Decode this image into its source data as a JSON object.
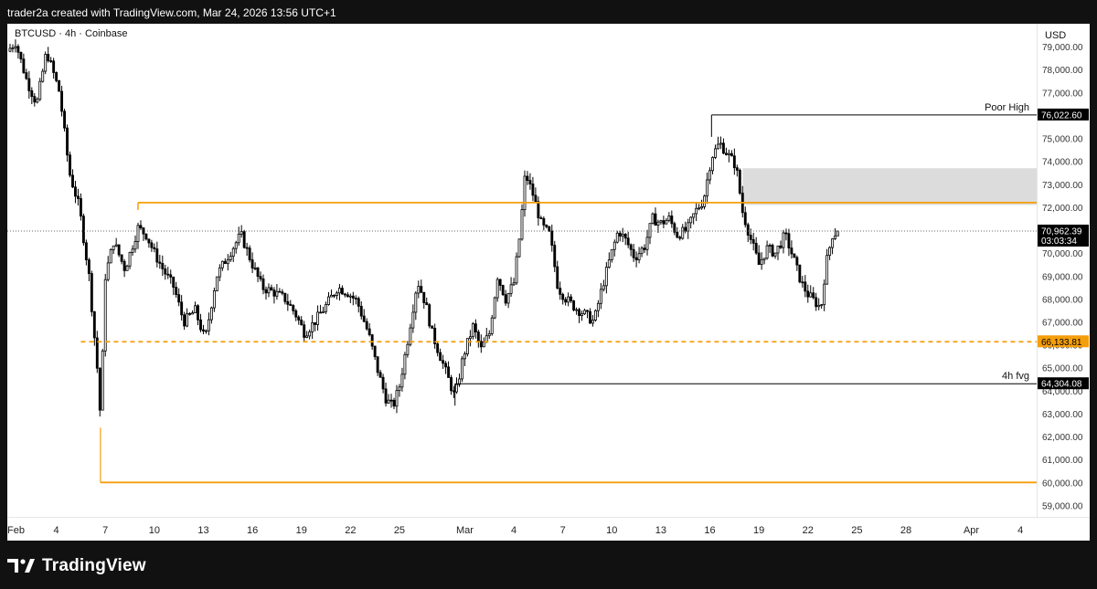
{
  "header": {
    "caption": "trader2a created with TradingView.com, Mar 24, 2026 13:56 UTC+1"
  },
  "footer": {
    "brand": "TradingView",
    "logo_icon": "tradingview-logo-icon"
  },
  "chart_data": {
    "type": "candlestick",
    "title": "BTCUSD · 4h · Coinbase",
    "currency_label": "USD",
    "symbol": "BTCUSD",
    "interval": "4h",
    "exchange": "Coinbase",
    "y_axis": {
      "position": "right",
      "ylim": [
        58500,
        80000
      ],
      "ticks": [
        59000,
        60000,
        61000,
        62000,
        63000,
        64000,
        65000,
        66000,
        67000,
        68000,
        69000,
        70000,
        71000,
        72000,
        73000,
        74000,
        75000,
        76000,
        77000,
        78000,
        79000
      ],
      "tick_labels": [
        "59,000.00",
        "60,000.00",
        "61,000.00",
        "62,000.00",
        "63,000.00",
        "64,000.00",
        "65,000.00",
        "66,000.00",
        "67,000.00",
        "68,000.00",
        "69,000.00",
        "70,000.00",
        "71,000.00",
        "72,000.00",
        "73,000.00",
        "74,000.00",
        "75,000.00",
        "76,000.00",
        "77,000.00",
        "78,000.00",
        "79,000.00"
      ]
    },
    "x_axis": {
      "unit": "day index (0 = Feb 1)",
      "xlim": [
        0,
        63
      ],
      "ticks": [
        {
          "day": 0,
          "label": "Feb"
        },
        {
          "day": 3,
          "label": "4"
        },
        {
          "day": 6,
          "label": "7"
        },
        {
          "day": 9,
          "label": "10"
        },
        {
          "day": 12,
          "label": "13"
        },
        {
          "day": 15,
          "label": "16"
        },
        {
          "day": 18,
          "label": "19"
        },
        {
          "day": 21,
          "label": "22"
        },
        {
          "day": 24,
          "label": "25"
        },
        {
          "day": 28,
          "label": "Mar"
        },
        {
          "day": 31,
          "label": "4"
        },
        {
          "day": 34,
          "label": "7"
        },
        {
          "day": 37,
          "label": "10"
        },
        {
          "day": 40,
          "label": "13"
        },
        {
          "day": 43,
          "label": "16"
        },
        {
          "day": 46,
          "label": "19"
        },
        {
          "day": 49,
          "label": "22"
        },
        {
          "day": 52,
          "label": "25"
        },
        {
          "day": 55,
          "label": "28"
        },
        {
          "day": 59,
          "label": "Apr"
        },
        {
          "day": 62,
          "label": "4"
        }
      ]
    },
    "price_path": [
      [
        0.0,
        78800
      ],
      [
        0.5,
        79200
      ],
      [
        1.2,
        77500
      ],
      [
        1.8,
        76500
      ],
      [
        2.4,
        78800
      ],
      [
        3.2,
        77000
      ],
      [
        3.8,
        73500
      ],
      [
        4.4,
        72000
      ],
      [
        5.0,
        69000
      ],
      [
        5.5,
        65000
      ],
      [
        5.7,
        62800
      ],
      [
        6.0,
        69000
      ],
      [
        6.5,
        70500
      ],
      [
        7.2,
        69300
      ],
      [
        8.0,
        71100
      ],
      [
        8.5,
        70800
      ],
      [
        9.0,
        70000
      ],
      [
        9.6,
        69200
      ],
      [
        10.2,
        68500
      ],
      [
        10.8,
        67000
      ],
      [
        11.5,
        67500
      ],
      [
        12.1,
        66200
      ],
      [
        12.8,
        69000
      ],
      [
        13.6,
        70000
      ],
      [
        14.3,
        70800
      ],
      [
        15.0,
        69500
      ],
      [
        15.6,
        68500
      ],
      [
        16.3,
        68300
      ],
      [
        17.0,
        68000
      ],
      [
        17.6,
        67400
      ],
      [
        18.2,
        66500
      ],
      [
        18.8,
        67000
      ],
      [
        19.5,
        67700
      ],
      [
        20.2,
        68500
      ],
      [
        20.8,
        68300
      ],
      [
        21.4,
        67900
      ],
      [
        22.1,
        66500
      ],
      [
        22.7,
        64800
      ],
      [
        23.2,
        63600
      ],
      [
        23.6,
        63300
      ],
      [
        24.0,
        64200
      ],
      [
        24.5,
        66200
      ],
      [
        25.1,
        68800
      ],
      [
        25.6,
        67800
      ],
      [
        26.0,
        66500
      ],
      [
        26.5,
        65500
      ],
      [
        27.0,
        64500
      ],
      [
        27.4,
        63700
      ],
      [
        27.9,
        65500
      ],
      [
        28.5,
        66800
      ],
      [
        29.0,
        65800
      ],
      [
        29.5,
        66500
      ],
      [
        30.0,
        69000
      ],
      [
        30.5,
        68000
      ],
      [
        31.0,
        68700
      ],
      [
        31.4,
        71000
      ],
      [
        31.7,
        73500
      ],
      [
        32.2,
        72500
      ],
      [
        32.7,
        71200
      ],
      [
        33.2,
        70800
      ],
      [
        33.7,
        68500
      ],
      [
        34.2,
        68000
      ],
      [
        34.8,
        67600
      ],
      [
        35.4,
        67300
      ],
      [
        35.9,
        67000
      ],
      [
        36.4,
        68500
      ],
      [
        36.9,
        69800
      ],
      [
        37.4,
        71000
      ],
      [
        37.9,
        70500
      ],
      [
        38.4,
        69800
      ],
      [
        39.0,
        70300
      ],
      [
        39.5,
        71500
      ],
      [
        40.0,
        71300
      ],
      [
        40.5,
        71500
      ],
      [
        41.0,
        70800
      ],
      [
        41.6,
        71000
      ],
      [
        42.1,
        71800
      ],
      [
        42.6,
        72300
      ],
      [
        43.1,
        74200
      ],
      [
        43.6,
        74800
      ],
      [
        44.1,
        74300
      ],
      [
        44.6,
        73800
      ],
      [
        45.0,
        71800
      ],
      [
        45.5,
        70600
      ],
      [
        46.0,
        69500
      ],
      [
        46.5,
        70200
      ],
      [
        47.0,
        70000
      ],
      [
        47.6,
        70800
      ],
      [
        48.1,
        69800
      ],
      [
        48.6,
        68700
      ],
      [
        49.0,
        68200
      ],
      [
        49.4,
        67900
      ],
      [
        49.8,
        67600
      ],
      [
        50.1,
        69500
      ],
      [
        50.5,
        70800
      ],
      [
        50.9,
        70962.39
      ]
    ],
    "last_price": {
      "value": 70962.39,
      "label": "70,962.39",
      "countdown": "03:03:34"
    },
    "levels": [
      {
        "name": "poor-high",
        "price": 76022.6,
        "price_label": "76,022.60",
        "text": "Poor High",
        "color": "#000000",
        "from_day": 43.1,
        "style": "solid"
      },
      {
        "name": "orange-resistance",
        "price": 72200,
        "text": "",
        "color": "#f59e0b",
        "from_day": 8.0,
        "style": "solid"
      },
      {
        "name": "orange-dashed",
        "price": 66133.81,
        "price_label": "66,133.81",
        "text": "",
        "color": "#f59e0b",
        "from_day": 4.5,
        "style": "dashed"
      },
      {
        "name": "fvg-4h",
        "price": 64304.08,
        "price_label": "64,304.08",
        "text": "4h fvg",
        "color": "#000000",
        "from_day": 27.4,
        "style": "solid"
      },
      {
        "name": "orange-support",
        "price": 60000,
        "text": "",
        "color": "#f59e0b",
        "from_day": 5.7,
        "style": "solid"
      }
    ],
    "zones": [
      {
        "name": "fvg-zone",
        "from_day": 45.0,
        "price_top": 73700,
        "price_bottom": 72100,
        "color": "#dcdcdc"
      }
    ],
    "colors": {
      "candle_body": "#000000",
      "candle_up": "#ffffff",
      "orange": "#f59e0b",
      "price_line": "#6b6b6b",
      "background": "#ffffff"
    },
    "grid": false
  }
}
